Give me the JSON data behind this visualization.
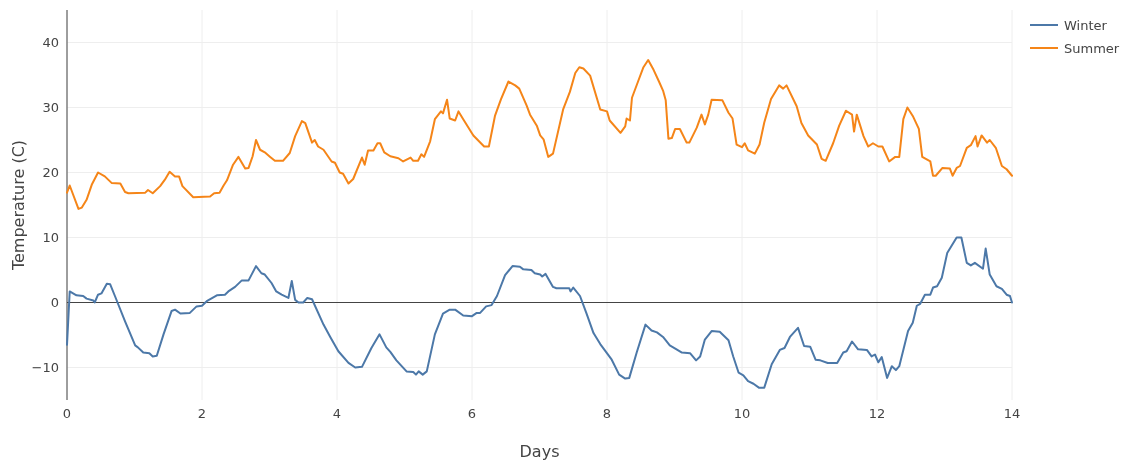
{
  "chart_data": {
    "type": "line",
    "xlabel": "Days",
    "ylabel": "Temperature (C)",
    "xlim": [
      0,
      14
    ],
    "xticks": [
      0,
      2,
      4,
      6,
      8,
      10,
      12,
      14
    ],
    "ylim": [
      -15,
      45
    ],
    "yticks": [
      {
        "value": -10,
        "label": "−10"
      },
      0,
      10,
      20,
      30,
      40
    ],
    "grid": true,
    "legend": "top right",
    "line_style": "solid",
    "ref_lines": [
      {
        "axis": "y",
        "value": 0,
        "color": "#444444"
      }
    ],
    "series": [
      {
        "name": "Winter",
        "color": "#4c78a8",
        "x": [
          0,
          0.04,
          0.14,
          0.24,
          0.29,
          0.39,
          0.41,
          0.46,
          0.51,
          0.59,
          0.64,
          0.71,
          0.86,
          1.01,
          1.05,
          1.13,
          1.22,
          1.27,
          1.33,
          1.43,
          1.55,
          1.6,
          1.68,
          1.82,
          1.92,
          2,
          2.07,
          2.22,
          2.34,
          2.39,
          2.49,
          2.59,
          2.69,
          2.8,
          2.88,
          2.93,
          3.03,
          3.1,
          3.18,
          3.28,
          3.33,
          3.38,
          3.43,
          3.5,
          3.56,
          3.63,
          3.8,
          3.9,
          4.02,
          4.17,
          4.27,
          4.37,
          4.51,
          4.63,
          4.73,
          4.79,
          4.88,
          5.03,
          5.13,
          5.17,
          5.21,
          5.27,
          5.33,
          5.45,
          5.57,
          5.67,
          5.75,
          5.87,
          6,
          6.07,
          6.12,
          6.21,
          6.29,
          6.37,
          6.49,
          6.6,
          6.71,
          6.76,
          6.88,
          6.93,
          7.01,
          7.04,
          7.09,
          7.2,
          7.25,
          7.44,
          7.46,
          7.5,
          7.6,
          7.7,
          7.8,
          7.9,
          8.07,
          8.18,
          8.27,
          8.33,
          8.44,
          8.57,
          8.66,
          8.74,
          8.83,
          8.93,
          9.03,
          9.11,
          9.23,
          9.32,
          9.38,
          9.45,
          9.55,
          9.67,
          9.8,
          9.87,
          9.95,
          10.02,
          10.09,
          10.17,
          10.25,
          10.33,
          10.44,
          10.56,
          10.63,
          10.71,
          10.83,
          10.92,
          11.01,
          11.09,
          11.16,
          11.27,
          11.41,
          11.5,
          11.55,
          11.63,
          11.72,
          11.85,
          11.92,
          11.97,
          12.02,
          12.07,
          12.15,
          12.22,
          12.28,
          12.33,
          12.46,
          12.53,
          12.59,
          12.64,
          12.71,
          12.79,
          12.83,
          12.89,
          12.96,
          13.04,
          13.18,
          13.25,
          13.33,
          13.39,
          13.45,
          13.57,
          13.61,
          13.67,
          13.77,
          13.85,
          13.92,
          13.97,
          14
        ],
        "values": [
          -6.5,
          1.7,
          1.1,
          1.0,
          0.6,
          0.3,
          0.0,
          1.2,
          1.4,
          2.9,
          2.8,
          1.0,
          -2.9,
          -6.6,
          -6.9,
          -7.7,
          -7.8,
          -8.3,
          -8.2,
          -4.9,
          -1.3,
          -1.1,
          -1.7,
          -1.6,
          -0.6,
          -0.5,
          0.2,
          1.1,
          1.2,
          1.7,
          2.4,
          3.4,
          3.4,
          5.6,
          4.5,
          4.3,
          3.0,
          1.7,
          1.2,
          0.7,
          3.3,
          0.4,
          0.0,
          0.0,
          0.7,
          0.5,
          -3.4,
          -5.3,
          -7.5,
          -9.3,
          -10.0,
          -9.9,
          -7.0,
          -4.9,
          -6.9,
          -7.6,
          -8.9,
          -10.6,
          -10.7,
          -11.1,
          -10.6,
          -11.1,
          -10.6,
          -4.9,
          -1.7,
          -1.1,
          -1.1,
          -2.0,
          -2.1,
          -1.6,
          -1.6,
          -0.6,
          -0.4,
          1.0,
          4.2,
          5.6,
          5.5,
          5.1,
          5.0,
          4.5,
          4.3,
          4.0,
          4.4,
          2.4,
          2.2,
          2.2,
          1.7,
          2.3,
          1.0,
          -1.8,
          -4.7,
          -6.4,
          -8.8,
          -11.1,
          -11.7,
          -11.6,
          -7.7,
          -3.4,
          -4.3,
          -4.6,
          -5.3,
          -6.6,
          -7.2,
          -7.7,
          -7.8,
          -8.9,
          -8.3,
          -5.7,
          -4.4,
          -4.5,
          -5.8,
          -8.3,
          -10.8,
          -11.2,
          -12.1,
          -12.5,
          -13.1,
          -13.1,
          -9.5,
          -7.3,
          -7.0,
          -5.3,
          -3.9,
          -6.7,
          -6.8,
          -8.8,
          -8.9,
          -9.3,
          -9.3,
          -7.7,
          -7.5,
          -6.0,
          -7.2,
          -7.3,
          -8.3,
          -8.0,
          -9.2,
          -8.4,
          -11.6,
          -9.8,
          -10.4,
          -9.8,
          -4.4,
          -3.1,
          -0.5,
          -0.2,
          1.2,
          1.2,
          2.3,
          2.5,
          3.8,
          7.6,
          10.0,
          10.0,
          6.1,
          5.7,
          6.1,
          5.2,
          8.3,
          4.3,
          2.5,
          2.1,
          1.2,
          1.0,
          0.0
        ]
      },
      {
        "name": "Summer",
        "color": "#f58518",
        "x": [
          0,
          0.04,
          0.17,
          0.22,
          0.29,
          0.37,
          0.46,
          0.56,
          0.66,
          0.79,
          0.86,
          0.91,
          1.16,
          1.2,
          1.27,
          1.38,
          1.45,
          1.52,
          1.6,
          1.66,
          1.71,
          1.87,
          2.12,
          2.18,
          2.26,
          2.32,
          2.37,
          2.46,
          2.54,
          2.64,
          2.69,
          2.75,
          2.8,
          2.86,
          2.93,
          3.01,
          3.08,
          3.2,
          3.3,
          3.38,
          3.48,
          3.53,
          3.63,
          3.67,
          3.72,
          3.8,
          3.92,
          3.97,
          4.04,
          4.09,
          4.17,
          4.24,
          4.37,
          4.41,
          4.46,
          4.54,
          4.6,
          4.64,
          4.7,
          4.79,
          4.91,
          4.98,
          5.09,
          5.13,
          5.2,
          5.25,
          5.29,
          5.38,
          5.45,
          5.54,
          5.57,
          5.63,
          5.67,
          5.75,
          5.8,
          5.87,
          6.02,
          6.18,
          6.25,
          6.34,
          6.43,
          6.54,
          6.64,
          6.7,
          6.81,
          6.86,
          6.96,
          7.01,
          7.06,
          7.13,
          7.2,
          7.35,
          7.45,
          7.53,
          7.59,
          7.65,
          7.75,
          7.9,
          8,
          8.04,
          8.2,
          8.27,
          8.29,
          8.34,
          8.37,
          8.46,
          8.54,
          8.61,
          8.69,
          8.77,
          8.83,
          8.87,
          8.91,
          8.96,
          9.01,
          9.08,
          9.18,
          9.22,
          9.33,
          9.4,
          9.45,
          9.5,
          9.55,
          9.71,
          9.8,
          9.86,
          9.92,
          10,
          10.04,
          10.09,
          10.19,
          10.26,
          10.33,
          10.43,
          10.55,
          10.61,
          10.66,
          10.81,
          10.88,
          10.98,
          11.11,
          11.18,
          11.24,
          11.35,
          11.44,
          11.54,
          11.63,
          11.66,
          11.7,
          11.8,
          11.87,
          11.94,
          12.02,
          12.08,
          12.18,
          12.27,
          12.33,
          12.39,
          12.45,
          12.53,
          12.62,
          12.67,
          12.79,
          12.83,
          12.87,
          12.97,
          13.08,
          13.12,
          13.18,
          13.23,
          13.33,
          13.39,
          13.46,
          13.49,
          13.55,
          13.63,
          13.67,
          13.76,
          13.85,
          13.92,
          14
        ],
        "values": [
          16.9,
          18.0,
          14.4,
          14.6,
          15.8,
          18.2,
          20.0,
          19.4,
          18.4,
          18.3,
          17.0,
          16.8,
          16.9,
          17.3,
          16.8,
          17.9,
          18.9,
          20.1,
          19.4,
          19.4,
          17.9,
          16.2,
          16.3,
          16.8,
          16.9,
          18.0,
          18.8,
          21.2,
          22.4,
          20.6,
          20.7,
          22.5,
          25.0,
          23.5,
          23.1,
          22.4,
          21.8,
          21.8,
          23.0,
          25.6,
          27.9,
          27.6,
          24.6,
          25.0,
          24.0,
          23.5,
          21.7,
          21.5,
          20.0,
          19.8,
          18.3,
          19.0,
          22.3,
          21.2,
          23.4,
          23.4,
          24.5,
          24.5,
          23.1,
          22.5,
          22.2,
          21.7,
          22.3,
          21.8,
          21.8,
          22.8,
          22.4,
          24.8,
          28.2,
          29.4,
          29.1,
          31.2,
          28.3,
          28.0,
          29.4,
          28.2,
          25.7,
          24.0,
          24.0,
          28.7,
          31.3,
          34.0,
          33.4,
          32.9,
          30.3,
          28.9,
          27.2,
          25.7,
          25.1,
          22.4,
          22.9,
          29.7,
          32.4,
          35.3,
          36.2,
          36.0,
          34.9,
          29.7,
          29.4,
          28.0,
          26.1,
          27.1,
          28.3,
          28.0,
          31.5,
          34.0,
          36.2,
          37.3,
          35.8,
          34.0,
          32.6,
          31.1,
          25.2,
          25.3,
          26.7,
          26.7,
          24.6,
          24.6,
          26.9,
          28.9,
          27.4,
          28.9,
          31.2,
          31.1,
          29.2,
          28.3,
          24.3,
          23.9,
          24.5,
          23.4,
          22.9,
          24.3,
          27.7,
          31.3,
          33.4,
          32.9,
          33.4,
          30.2,
          27.6,
          25.7,
          24.3,
          22.1,
          21.8,
          24.5,
          27.2,
          29.5,
          28.9,
          26.3,
          28.9,
          25.6,
          24.0,
          24.5,
          24.0,
          24.0,
          21.7,
          22.4,
          22.4,
          28.2,
          30.0,
          28.7,
          26.7,
          22.4,
          21.7,
          19.5,
          19.5,
          20.7,
          20.6,
          19.5,
          20.7,
          21.0,
          23.8,
          24.2,
          25.6,
          24.0,
          25.7,
          24.6,
          25.0,
          23.8,
          21.0,
          20.5,
          19.5
        ]
      }
    ]
  }
}
